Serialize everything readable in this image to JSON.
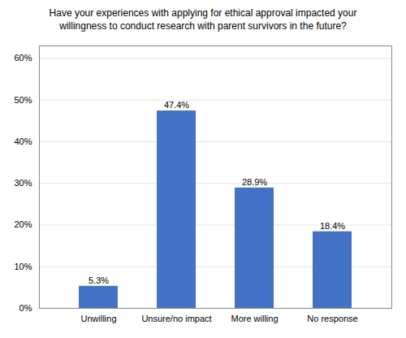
{
  "chart_data": {
    "type": "bar",
    "title": "Have your experiences with applying for ethical approval impacted your\nwillingness to conduct research with parent survivors in the future?",
    "categories": [
      "Unwilling",
      "Unsure/no impact",
      "More willing",
      "No response"
    ],
    "values": [
      5.3,
      47.4,
      28.9,
      18.4
    ],
    "value_labels": [
      "5.3%",
      "47.4%",
      "28.9%",
      "18.4%"
    ],
    "color": "#4472c4",
    "ylim": [
      0,
      63
    ],
    "yticks": [
      {
        "value": 0,
        "label": "0%"
      },
      {
        "value": 10,
        "label": "10%"
      },
      {
        "value": 20,
        "label": "20%"
      },
      {
        "value": 30,
        "label": "30%"
      },
      {
        "value": 40,
        "label": "40%"
      },
      {
        "value": 50,
        "label": "50%"
      },
      {
        "value": 60,
        "label": "60%"
      }
    ],
    "grid": true,
    "data_labels": true
  }
}
